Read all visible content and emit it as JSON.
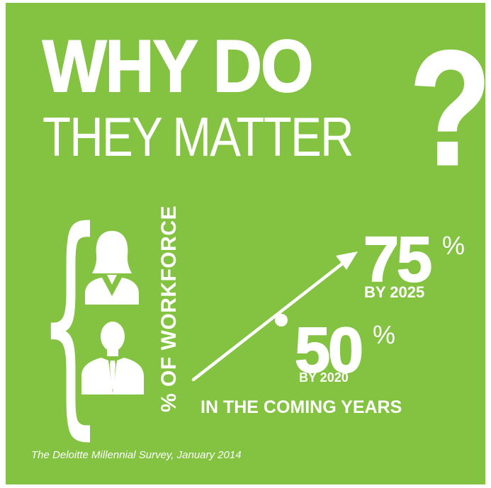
{
  "title": {
    "line1": "WHY DO",
    "line2": "THEY MATTER",
    "question_mark": "?"
  },
  "axis_label": "% OF WORKFORCE",
  "stats": {
    "first": {
      "value": "50",
      "unit": "%",
      "label": "BY 2020"
    },
    "second": {
      "value": "75",
      "unit": "%",
      "label": "BY 2025"
    }
  },
  "subtitle": "IN THE COMING YEARS",
  "source": "The Deloitte Millennial Survey, January 2014",
  "icons": {
    "top": "woman-icon",
    "bottom": "man-icon",
    "arrow": "trend-arrow-icon"
  },
  "colors": {
    "background": "#83c341",
    "foreground": "#ffffff"
  }
}
